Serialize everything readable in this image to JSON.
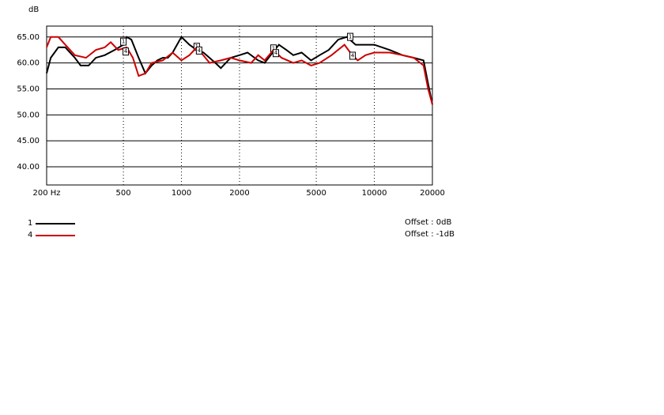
{
  "chart_data": {
    "type": "line",
    "y_label": "dB",
    "log_x": true,
    "grid": true,
    "xlim": [
      200,
      20000
    ],
    "ylim": [
      36.5,
      67.1
    ],
    "xticks": [
      {
        "value": 200,
        "label": "200 Hz"
      },
      500,
      1000,
      2000,
      5000,
      10000,
      20000
    ],
    "yticks": [
      {
        "value": 65,
        "label": "65.00"
      },
      {
        "value": 60,
        "label": "60.00"
      },
      {
        "value": 55,
        "label": "55.00"
      },
      {
        "value": 50,
        "label": "50.00"
      },
      {
        "value": 45,
        "label": "45.00"
      },
      {
        "value": 40,
        "label": "40.00"
      }
    ],
    "series": [
      {
        "name": "1",
        "color": "#000000",
        "offset": "Offset : 0dB",
        "markers": [
          500,
          1200,
          3000,
          7500
        ],
        "x": [
          200,
          210,
          230,
          250,
          280,
          300,
          330,
          360,
          400,
          450,
          500,
          520,
          550,
          600,
          650,
          700,
          750,
          800,
          850,
          900,
          1000,
          1100,
          1200,
          1300,
          1500,
          1600,
          1800,
          2000,
          2200,
          2500,
          2700,
          2900,
          3200,
          3500,
          3800,
          4200,
          4700,
          5200,
          5800,
          6500,
          7200,
          8000,
          9000,
          10000,
          12000,
          14000,
          16000,
          18000,
          19000,
          20000
        ],
        "values": [
          58,
          61,
          63,
          63,
          61,
          59.5,
          59.5,
          61,
          61.5,
          62.5,
          63.5,
          65,
          64.5,
          61,
          58,
          59.5,
          60.5,
          61,
          61,
          62,
          65,
          63.5,
          62.5,
          62,
          60,
          59,
          61,
          61.5,
          62,
          60.5,
          60,
          61.5,
          63.5,
          62.5,
          61.5,
          62,
          60.5,
          61.5,
          62.5,
          64.5,
          65,
          63.5,
          63.5,
          63.5,
          62.5,
          61.5,
          61,
          60.5,
          56,
          52
        ]
      },
      {
        "name": "4",
        "color": "#cc0000",
        "offset": "Offset : -1dB",
        "markers": [
          500,
          1200,
          3000,
          7500
        ],
        "x": [
          200,
          210,
          230,
          250,
          280,
          320,
          360,
          400,
          430,
          470,
          520,
          560,
          600,
          650,
          700,
          800,
          900,
          1000,
          1100,
          1200,
          1400,
          1600,
          1800,
          2000,
          2300,
          2500,
          2700,
          3000,
          3300,
          3800,
          4200,
          4700,
          5200,
          6000,
          7000,
          7500,
          8200,
          9000,
          10000,
          12000,
          14000,
          16000,
          18000,
          19000,
          20000
        ],
        "values": [
          63,
          65,
          65,
          63.5,
          61.5,
          61,
          62.5,
          63,
          64,
          62.5,
          63,
          61,
          57.5,
          58,
          60,
          60.5,
          62,
          60.5,
          61.5,
          63,
          60,
          60.5,
          61,
          60.5,
          60,
          61.5,
          60.5,
          62.5,
          61,
          60,
          60.5,
          59.5,
          60,
          61.5,
          63.5,
          62,
          60.5,
          61.5,
          62,
          62,
          61.5,
          61,
          59.5,
          55,
          52
        ]
      }
    ]
  }
}
